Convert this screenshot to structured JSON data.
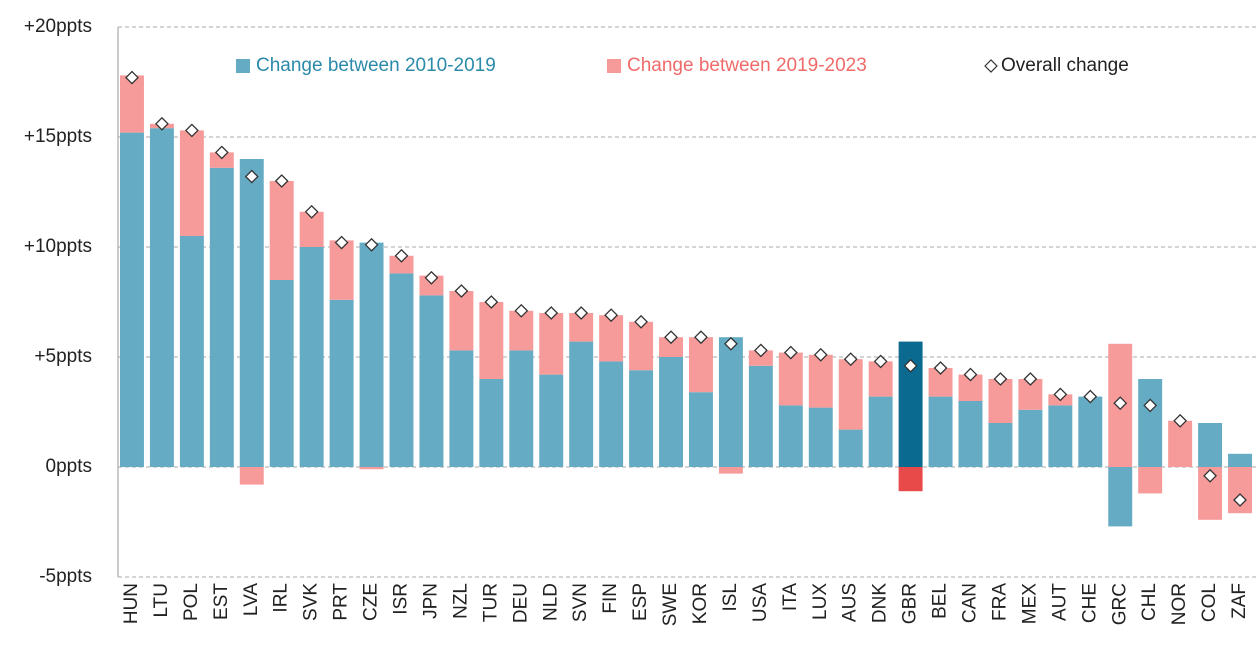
{
  "chart_data": {
    "type": "bar",
    "categories": [
      "HUN",
      "LTU",
      "POL",
      "EST",
      "LVA",
      "IRL",
      "SVK",
      "PRT",
      "CZE",
      "ISR",
      "JPN",
      "NZL",
      "TUR",
      "DEU",
      "NLD",
      "SVN",
      "FIN",
      "ESP",
      "SWE",
      "KOR",
      "ISL",
      "USA",
      "ITA",
      "LUX",
      "AUS",
      "DNK",
      "GBR",
      "BEL",
      "CAN",
      "FRA",
      "MEX",
      "AUT",
      "CHE",
      "GRC",
      "CHL",
      "NOR",
      "COL",
      "ZAF"
    ],
    "series": [
      {
        "name": "Change between 2010-2019",
        "color": "#65abc4",
        "highlight_color": "#0b6a8f",
        "text_color": "#2b8aaa",
        "values": [
          15.2,
          15.4,
          10.5,
          13.6,
          14.0,
          8.5,
          10.0,
          7.6,
          10.2,
          8.8,
          7.8,
          5.3,
          4.0,
          5.3,
          4.2,
          5.7,
          4.8,
          4.4,
          5.0,
          3.4,
          5.9,
          4.6,
          2.8,
          2.7,
          1.7,
          3.2,
          5.7,
          3.2,
          3.0,
          2.0,
          2.6,
          2.8,
          3.2,
          -2.7,
          4.0,
          0,
          2.0,
          0.6
        ]
      },
      {
        "name": "Change between 2019-2023",
        "color": "#f69a9a",
        "highlight_color": "#e84a4a",
        "text_color": "#f06a6a",
        "values": [
          2.6,
          0.2,
          4.8,
          0.7,
          -0.8,
          4.5,
          1.6,
          2.7,
          -0.1,
          0.8,
          0.9,
          2.7,
          3.5,
          1.8,
          2.8,
          1.3,
          2.1,
          2.2,
          0.9,
          2.5,
          -0.3,
          0.7,
          2.4,
          2.4,
          3.2,
          1.6,
          -1.1,
          1.3,
          1.2,
          2.0,
          1.4,
          0.5,
          0,
          5.6,
          -1.2,
          2.1,
          -2.4,
          -2.1
        ]
      },
      {
        "name": "Overall change",
        "type": "scatter",
        "color": "#ffffff",
        "stroke": "#333333",
        "values": [
          17.7,
          15.6,
          15.3,
          14.3,
          13.2,
          13.0,
          11.6,
          10.2,
          10.1,
          9.6,
          8.6,
          8.0,
          7.5,
          7.1,
          7.0,
          7.0,
          6.9,
          6.6,
          5.9,
          5.9,
          5.6,
          5.3,
          5.2,
          5.1,
          4.9,
          4.8,
          4.6,
          4.5,
          4.2,
          4.0,
          4.0,
          3.3,
          3.2,
          2.9,
          2.8,
          2.1,
          -0.4,
          -1.5
        ]
      }
    ],
    "highlight": "GBR",
    "stacked": true,
    "grid": true,
    "ylim": [
      -5,
      20
    ],
    "yticks": [
      {
        "value": -5,
        "label": "-5ppts"
      },
      {
        "value": 0,
        "label": "0ppts"
      },
      {
        "value": 5,
        "label": "+5ppts"
      },
      {
        "value": 10,
        "label": "+10ppts"
      },
      {
        "value": 15,
        "label": "+15ppts"
      },
      {
        "value": 20,
        "label": "+20ppts"
      }
    ]
  }
}
